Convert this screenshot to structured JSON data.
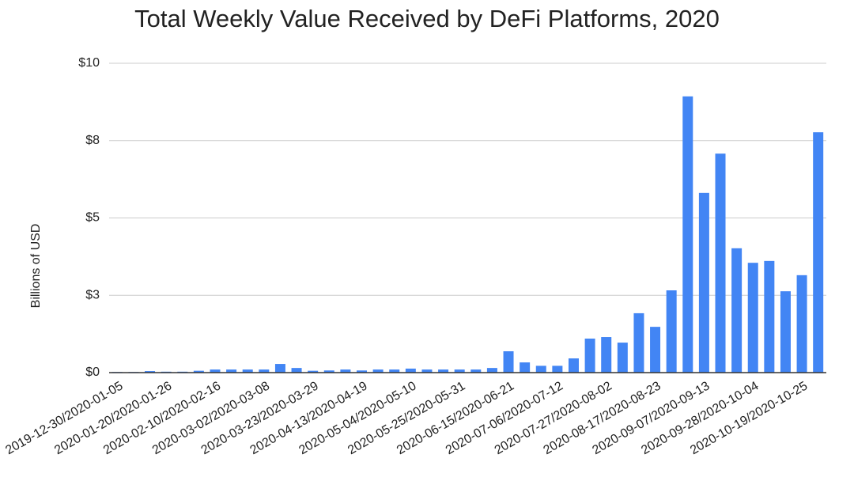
{
  "chart_data": {
    "type": "bar",
    "title": "Total Weekly Value Received by DeFi Platforms, 2020",
    "y_label": "Billions of USD",
    "categories": [
      "2019-12-30/2020-01-05",
      null,
      null,
      "2020-01-20/2020-01-26",
      null,
      null,
      "2020-02-10/2020-02-16",
      null,
      null,
      "2020-03-02/2020-03-08",
      null,
      null,
      "2020-03-23/2020-03-29",
      null,
      null,
      "2020-04-13/2020-04-19",
      null,
      null,
      "2020-05-04/2020-05-10",
      null,
      null,
      "2020-05-25/2020-05-31",
      null,
      null,
      "2020-06-15/2020-06-21",
      null,
      null,
      "2020-07-06/2020-07-12",
      null,
      null,
      "2020-07-27/2020-08-02",
      null,
      null,
      "2020-08-17/2020-08-23",
      null,
      null,
      "2020-09-07/2020-09-13",
      null,
      null,
      "2020-09-28/2020-10-04",
      null,
      null,
      "2020-10-19/2020-10-25",
      null
    ],
    "values": [
      0.02,
      0.02,
      0.05,
      0.03,
      0.03,
      0.06,
      0.1,
      0.1,
      0.1,
      0.1,
      0.28,
      0.15,
      0.06,
      0.07,
      0.1,
      0.07,
      0.1,
      0.1,
      0.13,
      0.1,
      0.1,
      0.1,
      0.1,
      0.15,
      0.69,
      0.33,
      0.22,
      0.22,
      0.46,
      1.1,
      1.15,
      0.97,
      1.92,
      1.48,
      2.66,
      8.93,
      5.81,
      7.08,
      4.02,
      3.55,
      3.61,
      2.63,
      3.15,
      7.77
    ],
    "color": "#4285f4",
    "ylim": [
      0,
      10
    ],
    "yticks": [
      {
        "value": 0,
        "label": "$0"
      },
      {
        "value": 2.5,
        "label": "$3"
      },
      {
        "value": 5,
        "label": "$5"
      },
      {
        "value": 7.5,
        "label": "$8"
      },
      {
        "value": 10,
        "label": "$10"
      }
    ],
    "grid": true
  }
}
